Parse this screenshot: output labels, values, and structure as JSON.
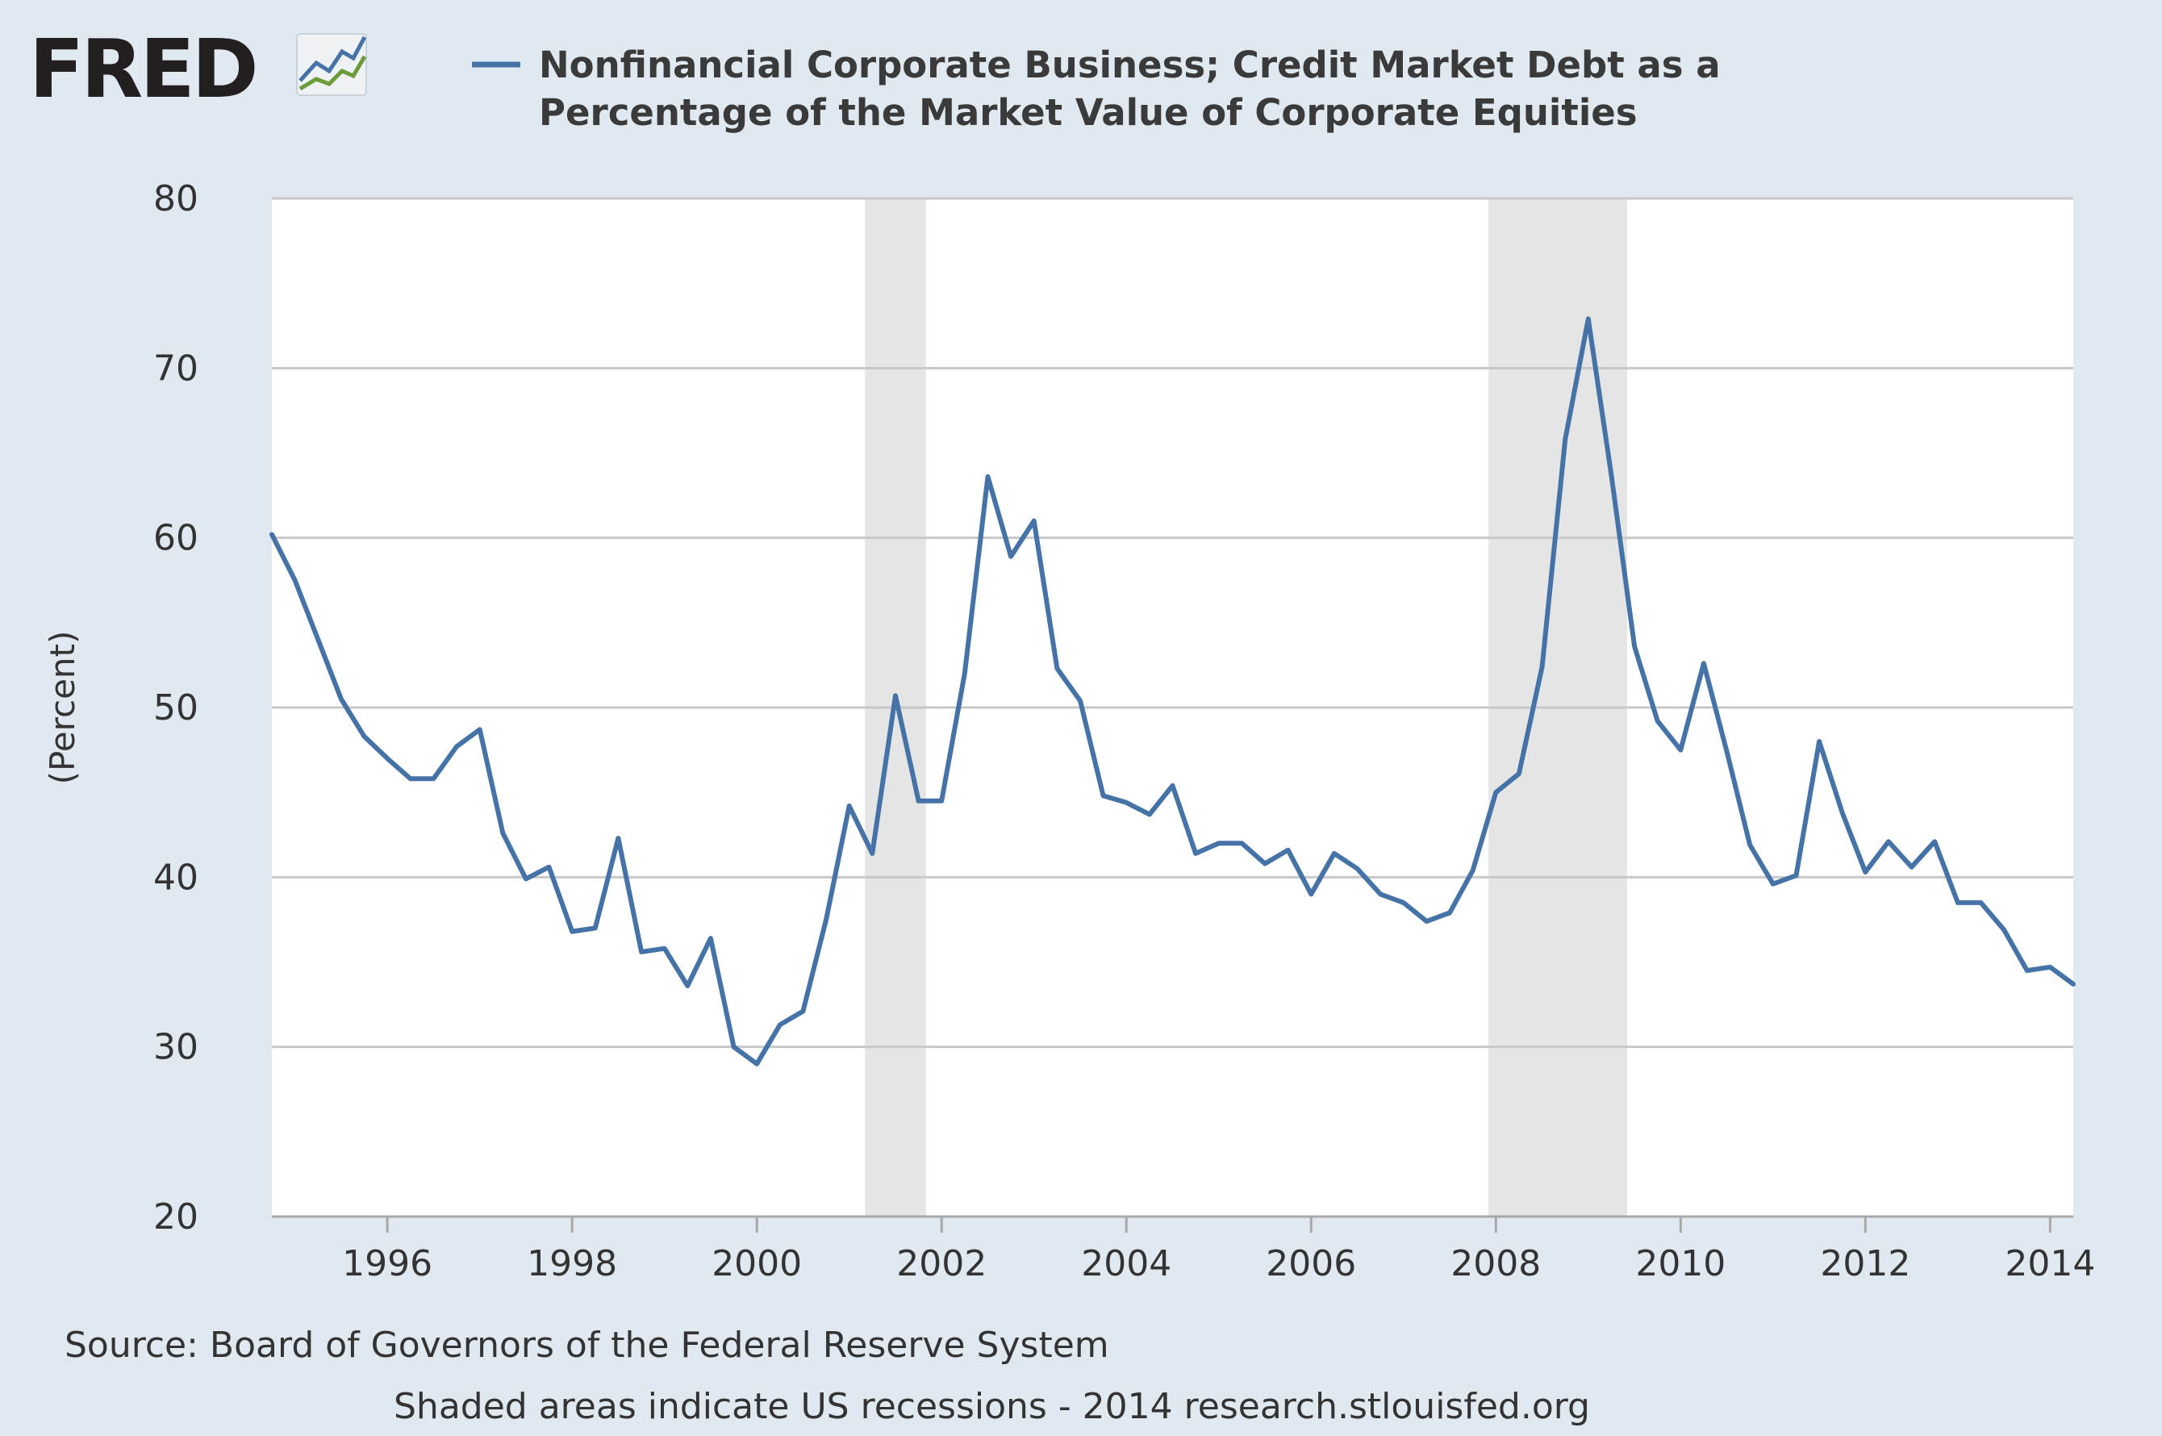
{
  "logo": {
    "text": "FRED",
    "icon": "trend-lines-icon"
  },
  "colors": {
    "background": "#e1e9f0",
    "plot_background": "#ffffff",
    "series": "#4572a7",
    "recession": "#e5e5e5",
    "grid": "#c8c8c8"
  },
  "footer": {
    "source": "Source: Board of Governors of the Federal Reserve System",
    "note": "Shaded areas indicate US recessions - 2014 research.stlouisfed.org"
  },
  "chart_data": {
    "type": "line",
    "title_lines": [
      "Nonfinancial Corporate Business; Credit Market Debt as a",
      "Percentage of the Market Value of Corporate Equities"
    ],
    "ylabel": "(Percent)",
    "xlabel": "",
    "xlim": [
      1994.75,
      2014.25
    ],
    "ylim": [
      20,
      80
    ],
    "yticks": [
      20,
      30,
      40,
      50,
      60,
      70,
      80
    ],
    "xticks": [
      1996,
      1998,
      2000,
      2002,
      2004,
      2006,
      2008,
      2010,
      2012,
      2014
    ],
    "grid": "horizontal",
    "legend": "top",
    "recessions": [
      [
        2001.17,
        2001.83
      ],
      [
        2007.92,
        2009.42
      ]
    ],
    "series": [
      {
        "name": "Nonfinancial Corporate Business; Credit Market Debt as a Percentage of the Market Value of Corporate Equities",
        "x": [
          1994.75,
          1995.0,
          1995.25,
          1995.5,
          1995.75,
          1996.0,
          1996.25,
          1996.5,
          1996.75,
          1997.0,
          1997.25,
          1997.5,
          1997.75,
          1998.0,
          1998.25,
          1998.5,
          1998.75,
          1999.0,
          1999.25,
          1999.5,
          1999.75,
          2000.0,
          2000.25,
          2000.5,
          2000.75,
          2001.0,
          2001.25,
          2001.5,
          2001.75,
          2002.0,
          2002.25,
          2002.5,
          2002.75,
          2003.0,
          2003.25,
          2003.5,
          2003.75,
          2004.0,
          2004.25,
          2004.5,
          2004.75,
          2005.0,
          2005.25,
          2005.5,
          2005.75,
          2006.0,
          2006.25,
          2006.5,
          2006.75,
          2007.0,
          2007.25,
          2007.5,
          2007.75,
          2008.0,
          2008.25,
          2008.5,
          2008.75,
          2009.0,
          2009.25,
          2009.5,
          2009.75,
          2010.0,
          2010.25,
          2010.5,
          2010.75,
          2011.0,
          2011.25,
          2011.5,
          2011.75,
          2012.0,
          2012.25,
          2012.5,
          2012.75,
          2013.0,
          2013.25,
          2013.5,
          2013.75,
          2014.0,
          2014.25
        ],
        "values": [
          60.2,
          57.5,
          54.0,
          50.5,
          48.3,
          47.0,
          45.8,
          45.8,
          47.7,
          48.7,
          42.6,
          39.9,
          40.6,
          36.8,
          37.0,
          42.3,
          35.6,
          35.8,
          33.6,
          36.4,
          30.0,
          29.0,
          31.3,
          32.1,
          37.5,
          44.2,
          41.4,
          50.7,
          44.5,
          44.5,
          52.0,
          63.6,
          58.9,
          61.0,
          52.3,
          50.4,
          44.8,
          44.4,
          43.7,
          45.4,
          41.4,
          42.0,
          42.0,
          40.8,
          41.6,
          39.0,
          41.4,
          40.5,
          39.0,
          38.5,
          37.4,
          37.9,
          40.4,
          45.0,
          46.1,
          52.4,
          65.8,
          72.9,
          63.7,
          53.6,
          49.2,
          47.5,
          52.6,
          47.4,
          41.9,
          39.6,
          40.1,
          48.0,
          43.8,
          40.3,
          42.1,
          40.6,
          42.1,
          38.5,
          38.5,
          36.9,
          34.5,
          34.7,
          33.7
        ]
      }
    ]
  }
}
